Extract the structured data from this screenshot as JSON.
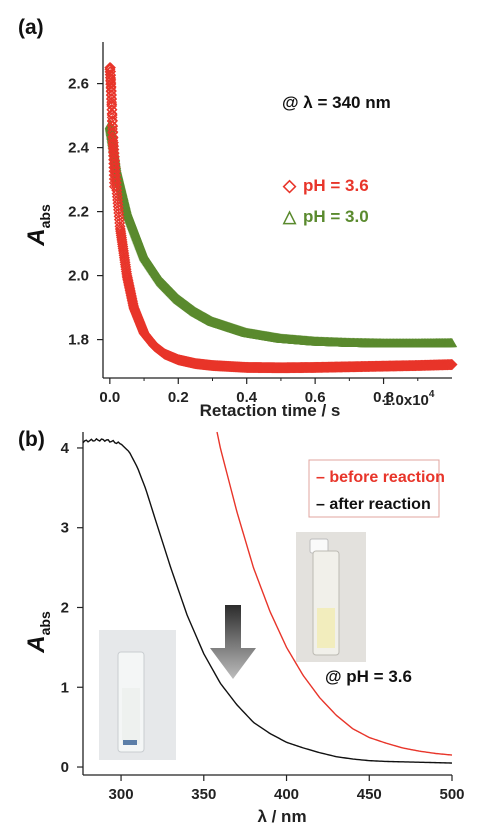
{
  "chart_data": [
    {
      "panel_label": "(a)",
      "type": "scatter",
      "annotation": "@ λ = 340 nm",
      "xlabel": "Retaction time /  s",
      "ylabel": "A",
      "ylabel_sub": "abs",
      "x_exponent_prefix": "1.0x10",
      "x_exponent_power": "4",
      "xlim": [
        -0.02,
        1.0
      ],
      "ylim": [
        1.68,
        2.73
      ],
      "x_ticks": [
        0.0,
        0.2,
        0.4,
        0.6,
        0.8
      ],
      "x_tick_labels": [
        "0.0",
        "0.2",
        "0.4",
        "0.6",
        "0.8"
      ],
      "y_ticks": [
        1.8,
        2.0,
        2.2,
        2.4,
        2.6
      ],
      "y_tick_labels": [
        "1.8",
        "2.0",
        "2.2",
        "2.4",
        "2.6"
      ],
      "legend_position": "center-right",
      "series": [
        {
          "name": "pH = 3.6",
          "marker": "◇",
          "color": "#e8352a",
          "x": [
            0.0,
            0.005,
            0.01,
            0.02,
            0.03,
            0.05,
            0.07,
            0.1,
            0.13,
            0.16,
            0.2,
            0.25,
            0.3,
            0.4,
            0.5,
            0.6,
            0.7,
            0.8,
            0.9,
            1.0
          ],
          "y": [
            2.65,
            2.55,
            2.42,
            2.27,
            2.15,
            2.0,
            1.9,
            1.82,
            1.78,
            1.755,
            1.737,
            1.725,
            1.719,
            1.713,
            1.712,
            1.713,
            1.715,
            1.717,
            1.719,
            1.722
          ]
        },
        {
          "name": "pH = 3.0",
          "marker": "△",
          "color": "#5a8a2e",
          "x": [
            0.0,
            0.02,
            0.05,
            0.1,
            0.15,
            0.2,
            0.25,
            0.3,
            0.4,
            0.5,
            0.6,
            0.7,
            0.8,
            0.9,
            1.0
          ],
          "y": [
            2.47,
            2.33,
            2.2,
            2.06,
            1.98,
            1.925,
            1.885,
            1.855,
            1.82,
            1.802,
            1.793,
            1.789,
            1.787,
            1.787,
            1.788
          ]
        }
      ]
    },
    {
      "panel_label": "(b)",
      "type": "line",
      "annotation": "@ pH = 3.6",
      "xlabel": "λ / nm",
      "ylabel": "A",
      "ylabel_sub": "abs",
      "xlim": [
        277,
        500
      ],
      "ylim": [
        -0.1,
        4.2
      ],
      "x_ticks": [
        300,
        350,
        400,
        450,
        500
      ],
      "x_tick_labels": [
        "300",
        "350",
        "400",
        "450",
        "500"
      ],
      "y_ticks": [
        0,
        1,
        2,
        3,
        4
      ],
      "y_tick_labels": [
        "0",
        "1",
        "2",
        "3",
        "4"
      ],
      "legend_position": "top-right",
      "series": [
        {
          "name": "before reaction",
          "legend_label": "– before reaction",
          "color": "#e8352a",
          "x": [
            358,
            360,
            365,
            370,
            375,
            380,
            390,
            400,
            410,
            420,
            430,
            440,
            450,
            460,
            470,
            480,
            490,
            500
          ],
          "y": [
            4.2,
            4.0,
            3.6,
            3.2,
            2.85,
            2.5,
            1.95,
            1.5,
            1.15,
            0.87,
            0.65,
            0.48,
            0.37,
            0.3,
            0.24,
            0.2,
            0.17,
            0.15
          ]
        },
        {
          "name": "after reaction",
          "legend_label": "– after reaction",
          "color": "#111111",
          "x": [
            277,
            280,
            285,
            290,
            295,
            300,
            305,
            310,
            315,
            320,
            330,
            340,
            350,
            360,
            370,
            380,
            390,
            400,
            410,
            420,
            430,
            440,
            450,
            460,
            480,
            500
          ],
          "y": [
            4.08,
            4.09,
            4.1,
            4.1,
            4.08,
            4.05,
            3.95,
            3.75,
            3.48,
            3.15,
            2.5,
            1.9,
            1.42,
            1.05,
            0.78,
            0.56,
            0.42,
            0.31,
            0.24,
            0.18,
            0.13,
            0.1,
            0.08,
            0.07,
            0.06,
            0.05
          ]
        }
      ]
    }
  ]
}
